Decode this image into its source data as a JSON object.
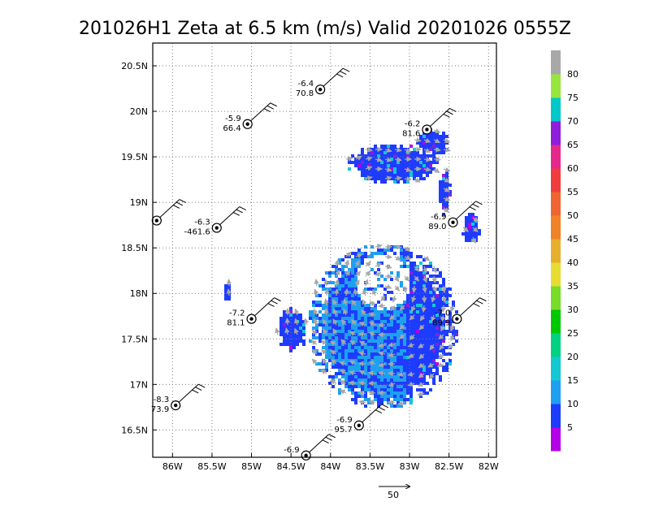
{
  "chart_data": {
    "type": "heatmap",
    "title": "201026H1 Zeta at 6.5 km (m/s) Valid 20201026 0555Z",
    "x_ticks": [
      "86W",
      "85.5W",
      "85W",
      "84.5W",
      "84W",
      "83.5W",
      "83W",
      "82.5W",
      "82W"
    ],
    "x_values": [
      -86,
      -85.5,
      -85,
      -84.5,
      -84,
      -83.5,
      -83,
      -82.5,
      -82
    ],
    "y_ticks": [
      "16.5N",
      "17N",
      "17.5N",
      "18N",
      "18.5N",
      "19N",
      "19.5N",
      "20N",
      "20.5N"
    ],
    "y_values": [
      16.5,
      17,
      17.5,
      18,
      18.5,
      19,
      19.5,
      20,
      20.5
    ],
    "xlim": [
      -86.25,
      -81.9
    ],
    "ylim": [
      16.2,
      20.75
    ],
    "grid": true,
    "colorbar": {
      "labels": [
        "5",
        "10",
        "15",
        "20",
        "25",
        "30",
        "35",
        "40",
        "45",
        "50",
        "55",
        "60",
        "65",
        "70",
        "75",
        "80"
      ],
      "colors": [
        "#b400e6",
        "#1e3cff",
        "#1ea0f0",
        "#14c8d2",
        "#00d282",
        "#00c800",
        "#78dc28",
        "#e6dc32",
        "#e6af2d",
        "#f08228",
        "#f06432",
        "#f03c3c",
        "#e6288c",
        "#8c1edc",
        "#00c8c8",
        "#96e63c",
        "#a8a8a8"
      ]
    },
    "vector_scale_label": "50",
    "stations": [
      {
        "lon": -84.13,
        "lat": 20.24,
        "top": "-6.4",
        "bottom": "70.8"
      },
      {
        "lon": -85.05,
        "lat": 19.86,
        "top": "-5.9",
        "bottom": "66.4"
      },
      {
        "lon": -82.78,
        "lat": 19.8,
        "top": "-6.2",
        "bottom": "81.6"
      },
      {
        "lon": -86.2,
        "lat": 18.8,
        "top": "",
        "bottom": ""
      },
      {
        "lon": -85.44,
        "lat": 18.72,
        "top": "-6.3",
        "bottom": "-461.6"
      },
      {
        "lon": -82.45,
        "lat": 18.78,
        "top": "-6.9",
        "bottom": "89.0"
      },
      {
        "lon": -85.0,
        "lat": 17.72,
        "top": "-7.2",
        "bottom": "81.1"
      },
      {
        "lon": -82.4,
        "lat": 17.72,
        "top": "-7.0",
        "bottom": "89.9"
      },
      {
        "lon": -85.96,
        "lat": 16.77,
        "top": "-8.3",
        "bottom": "73.9"
      },
      {
        "lon": -83.64,
        "lat": 16.55,
        "top": "-6.9",
        "bottom": "95.7"
      },
      {
        "lon": -84.31,
        "lat": 16.22,
        "top": "-6.9",
        "bottom": ""
      }
    ]
  }
}
